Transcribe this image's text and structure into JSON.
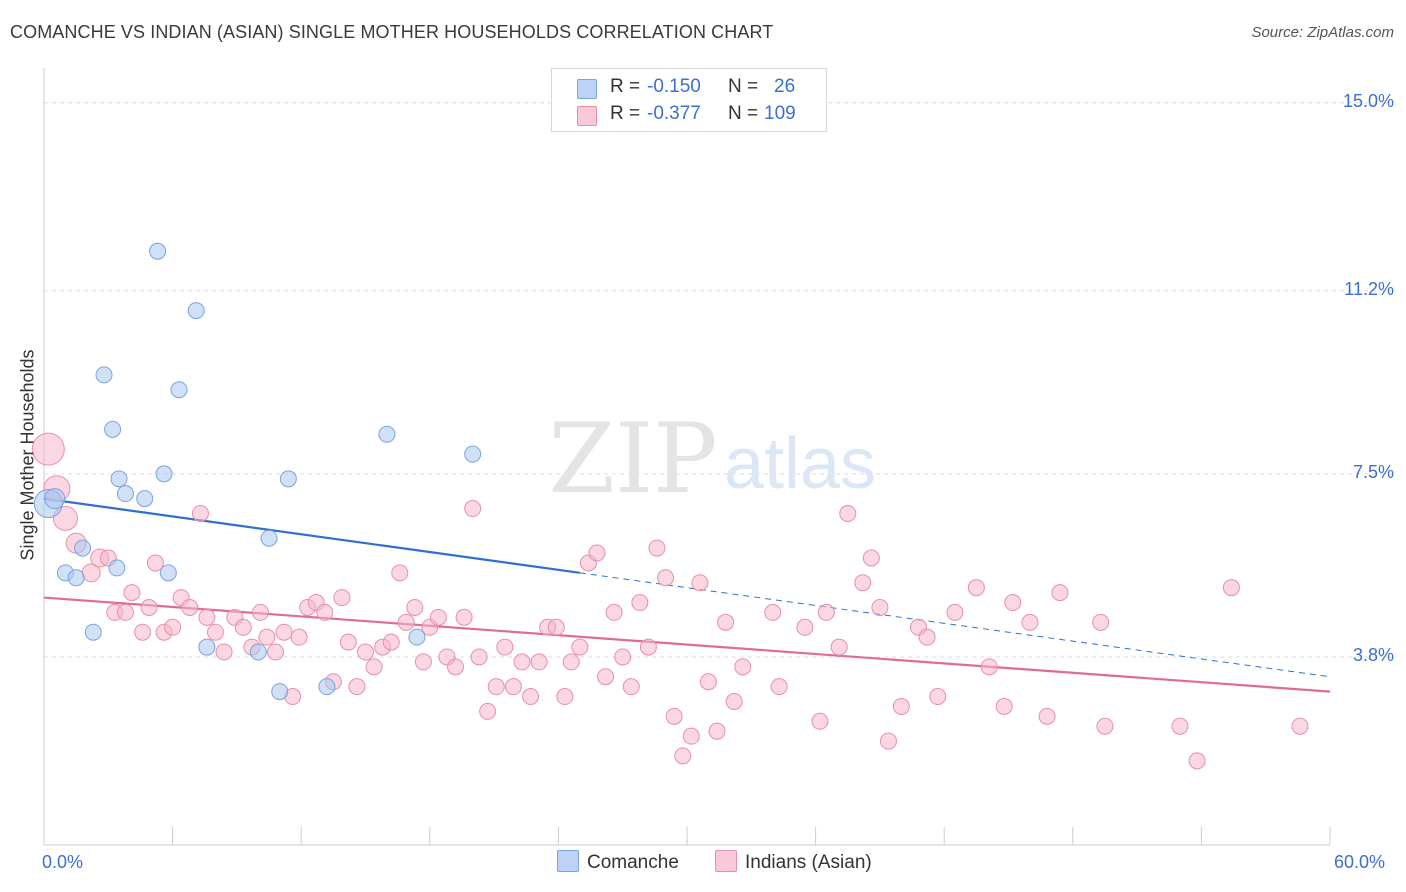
{
  "title": "COMANCHE VS INDIAN (ASIAN) SINGLE MOTHER HOUSEHOLDS CORRELATION CHART",
  "source": "Source: ZipAtlas.com",
  "watermark": {
    "zip": "ZIP",
    "atlas": "atlas"
  },
  "legend": {
    "rows": [
      {
        "r_label": "R =",
        "r_value": "-0.150",
        "n_label": "N =",
        "n_value": "26",
        "color": "#a9c6f0"
      },
      {
        "r_label": "R =",
        "r_value": "-0.377",
        "n_label": "N =",
        "n_value": "109",
        "color": "#f5b6c9"
      }
    ]
  },
  "bottom_legend": [
    "Comanche",
    "Indians (Asian)"
  ],
  "chart_data": {
    "type": "scatter",
    "title": "COMANCHE VS INDIAN (ASIAN) SINGLE MOTHER HOUSEHOLDS CORRELATION CHART",
    "xlabel": "",
    "ylabel": "Single Mother Households",
    "xlim": [
      0,
      60
    ],
    "ylim": [
      0,
      15.5
    ],
    "x_tick_labels": [
      "0.0%",
      "60.0%"
    ],
    "y_tick_labels": [
      "3.8%",
      "7.5%",
      "11.2%",
      "15.0%"
    ],
    "y_ticks": [
      3.8,
      7.5,
      11.2,
      15.0
    ],
    "grid": true,
    "legend_position": "top-center",
    "series": [
      {
        "name": "Comanche",
        "color": "#a9c6f0",
        "stroke": "#7aa3e0",
        "trend": {
          "x0": 0,
          "y0": 7.0,
          "x1": 25,
          "y1": 5.5,
          "dash_to_x": 60,
          "dash_to_y": 3.4,
          "color": "#2f6fd0"
        },
        "points": [
          {
            "x": 0.2,
            "y": 6.9,
            "s": 14
          },
          {
            "x": 0.5,
            "y": 7.0,
            "s": 10
          },
          {
            "x": 1.8,
            "y": 6.0,
            "s": 8
          },
          {
            "x": 1.0,
            "y": 5.5,
            "s": 8
          },
          {
            "x": 1.5,
            "y": 5.4,
            "s": 8
          },
          {
            "x": 2.3,
            "y": 4.3,
            "s": 8
          },
          {
            "x": 2.8,
            "y": 9.5,
            "s": 8
          },
          {
            "x": 3.2,
            "y": 8.4,
            "s": 8
          },
          {
            "x": 3.5,
            "y": 7.4,
            "s": 8
          },
          {
            "x": 3.8,
            "y": 7.1,
            "s": 8
          },
          {
            "x": 3.4,
            "y": 5.6,
            "s": 8
          },
          {
            "x": 4.7,
            "y": 7.0,
            "s": 8
          },
          {
            "x": 5.3,
            "y": 12.0,
            "s": 8
          },
          {
            "x": 5.6,
            "y": 7.5,
            "s": 8
          },
          {
            "x": 5.8,
            "y": 5.5,
            "s": 8
          },
          {
            "x": 6.3,
            "y": 9.2,
            "s": 8
          },
          {
            "x": 7.1,
            "y": 10.8,
            "s": 8
          },
          {
            "x": 7.6,
            "y": 4.0,
            "s": 8
          },
          {
            "x": 10.0,
            "y": 3.9,
            "s": 8
          },
          {
            "x": 10.5,
            "y": 6.2,
            "s": 8
          },
          {
            "x": 11.4,
            "y": 7.4,
            "s": 8
          },
          {
            "x": 11.0,
            "y": 3.1,
            "s": 8
          },
          {
            "x": 13.2,
            "y": 3.2,
            "s": 8
          },
          {
            "x": 16.0,
            "y": 8.3,
            "s": 8
          },
          {
            "x": 17.4,
            "y": 4.2,
            "s": 8
          },
          {
            "x": 20.0,
            "y": 7.9,
            "s": 8
          }
        ]
      },
      {
        "name": "Indians (Asian)",
        "color": "#f5b6c9",
        "stroke": "#e88fab",
        "trend": {
          "x0": 0,
          "y0": 5.0,
          "x1": 60,
          "y1": 3.1,
          "color": "#e06b95"
        },
        "points": [
          {
            "x": 0.2,
            "y": 8.0,
            "s": 16
          },
          {
            "x": 0.6,
            "y": 7.2,
            "s": 13
          },
          {
            "x": 1.0,
            "y": 6.6,
            "s": 12
          },
          {
            "x": 1.5,
            "y": 6.1,
            "s": 10
          },
          {
            "x": 2.2,
            "y": 5.5,
            "s": 9
          },
          {
            "x": 2.6,
            "y": 5.8,
            "s": 9
          },
          {
            "x": 3.0,
            "y": 5.8,
            "s": 8
          },
          {
            "x": 3.3,
            "y": 4.7,
            "s": 8
          },
          {
            "x": 3.8,
            "y": 4.7,
            "s": 8
          },
          {
            "x": 4.1,
            "y": 5.1,
            "s": 8
          },
          {
            "x": 4.6,
            "y": 4.3,
            "s": 8
          },
          {
            "x": 4.9,
            "y": 4.8,
            "s": 8
          },
          {
            "x": 5.2,
            "y": 5.7,
            "s": 8
          },
          {
            "x": 5.6,
            "y": 4.3,
            "s": 8
          },
          {
            "x": 6.0,
            "y": 4.4,
            "s": 8
          },
          {
            "x": 6.4,
            "y": 5.0,
            "s": 8
          },
          {
            "x": 6.8,
            "y": 4.8,
            "s": 8
          },
          {
            "x": 7.3,
            "y": 6.7,
            "s": 8
          },
          {
            "x": 7.6,
            "y": 4.6,
            "s": 8
          },
          {
            "x": 8.0,
            "y": 4.3,
            "s": 8
          },
          {
            "x": 8.4,
            "y": 3.9,
            "s": 8
          },
          {
            "x": 8.9,
            "y": 4.6,
            "s": 8
          },
          {
            "x": 9.3,
            "y": 4.4,
            "s": 8
          },
          {
            "x": 9.7,
            "y": 4.0,
            "s": 8
          },
          {
            "x": 10.1,
            "y": 4.7,
            "s": 8
          },
          {
            "x": 10.4,
            "y": 4.2,
            "s": 8
          },
          {
            "x": 10.8,
            "y": 3.9,
            "s": 8
          },
          {
            "x": 11.2,
            "y": 4.3,
            "s": 8
          },
          {
            "x": 11.6,
            "y": 3.0,
            "s": 8
          },
          {
            "x": 11.9,
            "y": 4.2,
            "s": 8
          },
          {
            "x": 12.3,
            "y": 4.8,
            "s": 8
          },
          {
            "x": 12.7,
            "y": 4.9,
            "s": 8
          },
          {
            "x": 13.1,
            "y": 4.7,
            "s": 8
          },
          {
            "x": 13.5,
            "y": 3.3,
            "s": 8
          },
          {
            "x": 13.9,
            "y": 5.0,
            "s": 8
          },
          {
            "x": 14.2,
            "y": 4.1,
            "s": 8
          },
          {
            "x": 14.6,
            "y": 3.2,
            "s": 8
          },
          {
            "x": 15.0,
            "y": 3.9,
            "s": 8
          },
          {
            "x": 15.4,
            "y": 3.6,
            "s": 8
          },
          {
            "x": 15.8,
            "y": 4.0,
            "s": 8
          },
          {
            "x": 16.2,
            "y": 4.1,
            "s": 8
          },
          {
            "x": 16.6,
            "y": 5.5,
            "s": 8
          },
          {
            "x": 16.9,
            "y": 4.5,
            "s": 8
          },
          {
            "x": 17.3,
            "y": 4.8,
            "s": 8
          },
          {
            "x": 17.7,
            "y": 3.7,
            "s": 8
          },
          {
            "x": 18.0,
            "y": 4.4,
            "s": 8
          },
          {
            "x": 18.4,
            "y": 4.6,
            "s": 8
          },
          {
            "x": 18.8,
            "y": 3.8,
            "s": 8
          },
          {
            "x": 19.2,
            "y": 3.6,
            "s": 8
          },
          {
            "x": 19.6,
            "y": 4.6,
            "s": 8
          },
          {
            "x": 20.0,
            "y": 6.8,
            "s": 8
          },
          {
            "x": 20.3,
            "y": 3.8,
            "s": 8
          },
          {
            "x": 20.7,
            "y": 2.7,
            "s": 8
          },
          {
            "x": 21.1,
            "y": 3.2,
            "s": 8
          },
          {
            "x": 21.5,
            "y": 4.0,
            "s": 8
          },
          {
            "x": 21.9,
            "y": 3.2,
            "s": 8
          },
          {
            "x": 22.3,
            "y": 3.7,
            "s": 8
          },
          {
            "x": 22.7,
            "y": 3.0,
            "s": 8
          },
          {
            "x": 23.1,
            "y": 3.7,
            "s": 8
          },
          {
            "x": 23.5,
            "y": 4.4,
            "s": 8
          },
          {
            "x": 23.9,
            "y": 4.4,
            "s": 8
          },
          {
            "x": 24.3,
            "y": 3.0,
            "s": 8
          },
          {
            "x": 24.6,
            "y": 3.7,
            "s": 8
          },
          {
            "x": 25.0,
            "y": 4.0,
            "s": 8
          },
          {
            "x": 25.4,
            "y": 5.7,
            "s": 8
          },
          {
            "x": 25.8,
            "y": 5.9,
            "s": 8
          },
          {
            "x": 26.2,
            "y": 3.4,
            "s": 8
          },
          {
            "x": 26.6,
            "y": 4.7,
            "s": 8
          },
          {
            "x": 27.0,
            "y": 3.8,
            "s": 8
          },
          {
            "x": 27.4,
            "y": 3.2,
            "s": 8
          },
          {
            "x": 27.8,
            "y": 4.9,
            "s": 8
          },
          {
            "x": 28.2,
            "y": 4.0,
            "s": 8
          },
          {
            "x": 28.6,
            "y": 6.0,
            "s": 8
          },
          {
            "x": 29.0,
            "y": 5.4,
            "s": 8
          },
          {
            "x": 29.4,
            "y": 2.6,
            "s": 8
          },
          {
            "x": 29.8,
            "y": 1.8,
            "s": 8
          },
          {
            "x": 30.2,
            "y": 2.2,
            "s": 8
          },
          {
            "x": 30.6,
            "y": 5.3,
            "s": 8
          },
          {
            "x": 31.0,
            "y": 3.3,
            "s": 8
          },
          {
            "x": 31.4,
            "y": 2.3,
            "s": 8
          },
          {
            "x": 31.8,
            "y": 4.5,
            "s": 8
          },
          {
            "x": 32.2,
            "y": 2.9,
            "s": 8
          },
          {
            "x": 32.6,
            "y": 3.6,
            "s": 8
          },
          {
            "x": 34.0,
            "y": 4.7,
            "s": 8
          },
          {
            "x": 34.3,
            "y": 3.2,
            "s": 8
          },
          {
            "x": 35.5,
            "y": 4.4,
            "s": 8
          },
          {
            "x": 36.2,
            "y": 2.5,
            "s": 8
          },
          {
            "x": 36.5,
            "y": 4.7,
            "s": 8
          },
          {
            "x": 37.1,
            "y": 4.0,
            "s": 8
          },
          {
            "x": 37.5,
            "y": 6.7,
            "s": 8
          },
          {
            "x": 38.2,
            "y": 5.3,
            "s": 8
          },
          {
            "x": 38.6,
            "y": 5.8,
            "s": 8
          },
          {
            "x": 39.0,
            "y": 4.8,
            "s": 8
          },
          {
            "x": 39.4,
            "y": 2.1,
            "s": 8
          },
          {
            "x": 40.0,
            "y": 2.8,
            "s": 8
          },
          {
            "x": 40.8,
            "y": 4.4,
            "s": 8
          },
          {
            "x": 41.2,
            "y": 4.2,
            "s": 8
          },
          {
            "x": 41.7,
            "y": 3.0,
            "s": 8
          },
          {
            "x": 42.5,
            "y": 4.7,
            "s": 8
          },
          {
            "x": 43.5,
            "y": 5.2,
            "s": 8
          },
          {
            "x": 44.1,
            "y": 3.6,
            "s": 8
          },
          {
            "x": 44.8,
            "y": 2.8,
            "s": 8
          },
          {
            "x": 45.2,
            "y": 4.9,
            "s": 8
          },
          {
            "x": 46.0,
            "y": 4.5,
            "s": 8
          },
          {
            "x": 46.8,
            "y": 2.6,
            "s": 8
          },
          {
            "x": 47.4,
            "y": 5.1,
            "s": 8
          },
          {
            "x": 49.3,
            "y": 4.5,
            "s": 8
          },
          {
            "x": 49.5,
            "y": 2.4,
            "s": 8
          },
          {
            "x": 53.0,
            "y": 2.4,
            "s": 8
          },
          {
            "x": 53.8,
            "y": 1.7,
            "s": 8
          },
          {
            "x": 55.4,
            "y": 5.2,
            "s": 8
          },
          {
            "x": 58.6,
            "y": 2.4,
            "s": 8
          }
        ]
      }
    ]
  }
}
